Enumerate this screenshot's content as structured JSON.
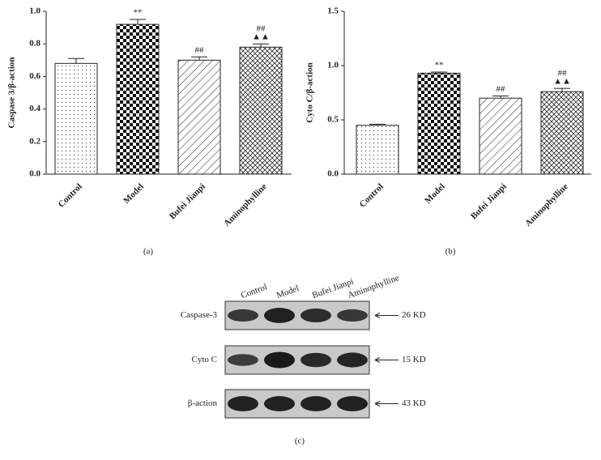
{
  "chart_data": [
    {
      "type": "bar",
      "panel": "(a)",
      "y_label": "Caspase 3/β-action",
      "categories": [
        "Control",
        "Model",
        "Bufei Jianpi",
        "Aminophylline"
      ],
      "values": [
        0.68,
        0.92,
        0.7,
        0.78
      ],
      "errors": [
        0.03,
        0.03,
        0.02,
        0.02
      ],
      "annotations": [
        [],
        [
          "**"
        ],
        [
          "##"
        ],
        [
          "##",
          "▲▲"
        ]
      ],
      "patterns": [
        "dots",
        "checker",
        "hatch",
        "weave"
      ],
      "ylim": [
        0,
        1.0
      ],
      "yticks": [
        {
          "value": 0,
          "label": "0.0"
        },
        0.2,
        0.4,
        0.6,
        0.8,
        {
          "value": 1.0,
          "label": "1.0"
        }
      ]
    },
    {
      "type": "bar",
      "panel": "(b)",
      "y_label": "Cyto C/β-action",
      "categories": [
        "Control",
        "Model",
        "Bufei Jianpi",
        "Aminophylline"
      ],
      "values": [
        0.45,
        0.93,
        0.7,
        0.76
      ],
      "errors": [
        0.01,
        0.01,
        0.02,
        0.03
      ],
      "annotations": [
        [],
        [
          "**"
        ],
        [
          "##"
        ],
        [
          "##",
          "▲▲"
        ]
      ],
      "patterns": [
        "dots",
        "checker",
        "hatch",
        "weave"
      ],
      "ylim": [
        0,
        1.5
      ],
      "yticks": [
        {
          "value": 0,
          "label": "0.0"
        },
        0.5,
        {
          "value": 1.0,
          "label": "1.0"
        },
        1.5
      ]
    }
  ],
  "blot": {
    "panel": "(c)",
    "lanes": [
      "Control",
      "Model",
      "Bufei Jianpi",
      "Aminophylline"
    ],
    "rows": [
      {
        "label": "Caspase-3",
        "size": "26 KD"
      },
      {
        "label": "Cyto C",
        "size": "15 KD"
      },
      {
        "label": "β-action",
        "size": "43 KD"
      }
    ]
  }
}
